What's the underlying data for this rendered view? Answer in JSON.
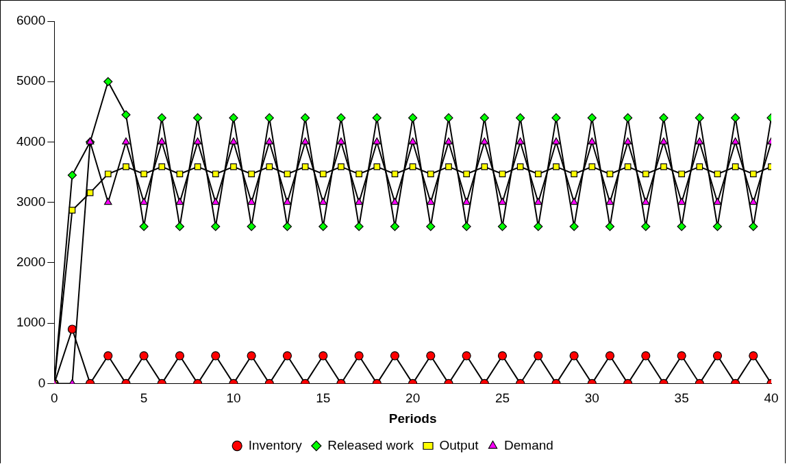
{
  "chart_data": {
    "type": "line",
    "xlabel": "Periods",
    "x": [
      0,
      1,
      2,
      3,
      4,
      5,
      6,
      7,
      8,
      9,
      10,
      11,
      12,
      13,
      14,
      15,
      16,
      17,
      18,
      19,
      20,
      21,
      22,
      23,
      24,
      25,
      26,
      27,
      28,
      29,
      30,
      31,
      32,
      33,
      34,
      35,
      36,
      37,
      38,
      39,
      40
    ],
    "xlim": [
      0,
      40
    ],
    "xticks": [
      0,
      5,
      10,
      15,
      20,
      25,
      30,
      35,
      40
    ],
    "ylim": [
      0,
      6000
    ],
    "yticks": [
      0,
      1000,
      2000,
      3000,
      4000,
      5000,
      6000
    ],
    "grid": false,
    "legend": "bottom",
    "line_style": "solid",
    "series": [
      {
        "name": "Inventory",
        "color": "#ff0000",
        "marker": "circle",
        "values": [
          0,
          900,
          0,
          460,
          0,
          460,
          0,
          460,
          0,
          460,
          0,
          460,
          0,
          460,
          0,
          460,
          0,
          460,
          0,
          460,
          0,
          460,
          0,
          460,
          0,
          460,
          0,
          460,
          0,
          460,
          0,
          460,
          0,
          460,
          0,
          460,
          0,
          460,
          0,
          460,
          0
        ]
      },
      {
        "name": "Released work",
        "color": "#00ff00",
        "marker": "diamond",
        "values": [
          0,
          3450,
          4000,
          5000,
          4450,
          2600,
          4400,
          2600,
          4400,
          2600,
          4400,
          2600,
          4400,
          2600,
          4400,
          2600,
          4400,
          2600,
          4400,
          2600,
          4400,
          2600,
          4400,
          2600,
          4400,
          2600,
          4400,
          2600,
          4400,
          2600,
          4400,
          2600,
          4400,
          2600,
          4400,
          2600,
          4400,
          2600,
          4400,
          2600,
          4400
        ]
      },
      {
        "name": "Output",
        "color": "#ffff00",
        "marker": "square",
        "values": [
          0,
          2870,
          3160,
          3470,
          3590,
          3470,
          3590,
          3470,
          3590,
          3470,
          3590,
          3470,
          3590,
          3470,
          3590,
          3470,
          3590,
          3470,
          3590,
          3470,
          3590,
          3470,
          3590,
          3470,
          3590,
          3470,
          3590,
          3470,
          3590,
          3470,
          3590,
          3470,
          3590,
          3470,
          3590,
          3470,
          3590,
          3470,
          3590,
          3470,
          3590
        ]
      },
      {
        "name": "Demand",
        "color": "#ff00ff",
        "marker": "triangle",
        "values": [
          0,
          0,
          4000,
          3000,
          4000,
          3000,
          4000,
          3000,
          4000,
          3000,
          4000,
          3000,
          4000,
          3000,
          4000,
          3000,
          4000,
          3000,
          4000,
          3000,
          4000,
          3000,
          4000,
          3000,
          4000,
          3000,
          4000,
          3000,
          4000,
          3000,
          4000,
          3000,
          4000,
          3000,
          4000,
          3000,
          4000,
          3000,
          4000,
          3000,
          4000
        ]
      }
    ]
  }
}
